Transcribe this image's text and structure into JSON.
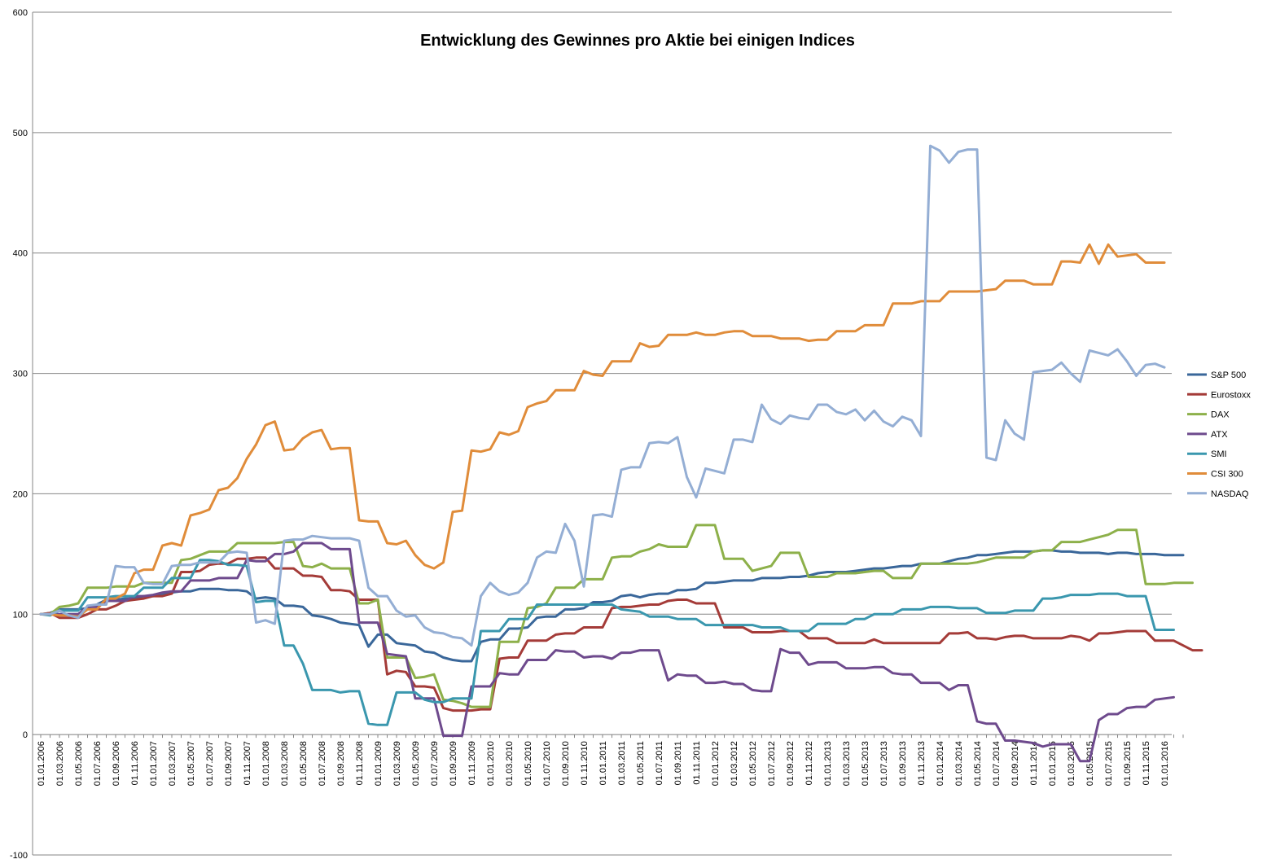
{
  "chart_data": {
    "type": "line",
    "title": "Entwicklung des Gewinnes pro Aktie bei einigen Indices",
    "xlabel": "",
    "ylabel": "",
    "ylim": [
      -100,
      600
    ],
    "yticks": [
      -100,
      0,
      100,
      200,
      300,
      400,
      500,
      600
    ],
    "grid": true,
    "legend_position": "right",
    "x_start": "01.01.2006",
    "x_end": "01.02.2016",
    "x_tick_labels": [
      "01.01.2006",
      "01.03.2006",
      "01.05.2006",
      "01.07.2006",
      "01.09.2006",
      "01.11.2006",
      "01.01.2007",
      "01.03.2007",
      "01.05.2007",
      "01.07.2007",
      "01.09.2007",
      "01.11.2007",
      "01.01.2008",
      "01.03.2008",
      "01.05.2008",
      "01.07.2008",
      "01.09.2008",
      "01.11.2008",
      "01.01.2009",
      "01.03.2009",
      "01.05.2009",
      "01.07.2009",
      "01.09.2009",
      "01.11.2009",
      "01.01.2010",
      "01.03.2010",
      "01.05.2010",
      "01.07.2010",
      "01.09.2010",
      "01.11.2010",
      "01.01.2011",
      "01.03.2011",
      "01.05.2011",
      "01.07.2011",
      "01.09.2011",
      "01.11.2011",
      "01.01.2012",
      "01.03.2012",
      "01.05.2012",
      "01.07.2012",
      "01.09.2012",
      "01.11.2012",
      "01.01.2013",
      "01.03.2013",
      "01.05.2013",
      "01.07.2013",
      "01.09.2013",
      "01.11.2013",
      "01.01.2014",
      "01.03.2014",
      "01.05.2014",
      "01.07.2014",
      "01.09.2014",
      "01.11.2014",
      "01.01.2015",
      "01.03.2015",
      "01.05.2015",
      "01.07.2015",
      "01.09.2015",
      "01.11.2015",
      "01.01.2016"
    ],
    "series": [
      {
        "name": "S&P 500",
        "color": "#3A679A",
        "values": [
          100,
          101,
          104,
          104,
          104,
          105,
          108,
          112,
          112,
          113,
          113,
          115,
          115,
          116,
          118,
          119,
          119,
          121,
          121,
          121,
          120,
          120,
          119,
          113,
          114,
          113,
          107,
          107,
          106,
          99,
          98,
          96,
          93,
          92,
          91,
          73,
          83,
          83,
          76,
          75,
          74,
          69,
          68,
          64,
          62,
          61,
          61,
          77,
          79,
          79,
          88,
          88,
          89,
          97,
          98,
          98,
          104,
          104,
          105,
          110,
          110,
          111,
          115,
          116,
          114,
          116,
          117,
          117,
          120,
          120,
          121,
          126,
          126,
          127,
          128,
          128,
          128,
          130,
          130,
          130,
          131,
          131,
          132,
          134,
          135,
          135,
          135,
          136,
          137,
          138,
          138,
          139,
          140,
          140,
          142,
          142,
          142,
          144,
          146,
          147,
          149,
          149,
          150,
          151,
          152,
          152,
          152,
          153,
          153,
          152,
          152,
          151,
          151,
          151,
          150,
          151,
          151,
          150,
          150,
          150,
          149,
          149,
          149
        ]
      },
      {
        "name": "Eurostoxx",
        "color": "#A43B38",
        "values": [
          100,
          101,
          97,
          97,
          97,
          100,
          104,
          104,
          107,
          111,
          112,
          113,
          115,
          115,
          117,
          135,
          135,
          136,
          141,
          142,
          142,
          146,
          146,
          147,
          147,
          138,
          138,
          138,
          132,
          132,
          131,
          120,
          120,
          119,
          112,
          112,
          112,
          50,
          53,
          52,
          40,
          40,
          39,
          22,
          20,
          20,
          20,
          21,
          21,
          63,
          64,
          64,
          78,
          78,
          78,
          83,
          84,
          84,
          89,
          89,
          89,
          105,
          106,
          106,
          107,
          108,
          108,
          111,
          112,
          112,
          109,
          109,
          109,
          89,
          89,
          89,
          85,
          85,
          85,
          86,
          86,
          86,
          80,
          80,
          80,
          76,
          76,
          76,
          76,
          79,
          76,
          76,
          76,
          76,
          76,
          76,
          76,
          84,
          84,
          85,
          80,
          80,
          79,
          81,
          82,
          82,
          80,
          80,
          80,
          80,
          82,
          81,
          78,
          84,
          84,
          85,
          86,
          86,
          86,
          78,
          78,
          78,
          74,
          70,
          70
        ]
      },
      {
        "name": "DAX",
        "color": "#8DB04A",
        "values": [
          100,
          100,
          106,
          107,
          109,
          122,
          122,
          122,
          123,
          123,
          123,
          126,
          126,
          126,
          126,
          145,
          146,
          149,
          152,
          152,
          152,
          159,
          159,
          159,
          159,
          159,
          160,
          160,
          140,
          139,
          142,
          138,
          138,
          138,
          109,
          109,
          112,
          64,
          64,
          64,
          47,
          48,
          50,
          29,
          28,
          26,
          23,
          23,
          23,
          77,
          77,
          77,
          105,
          106,
          109,
          122,
          122,
          122,
          129,
          129,
          129,
          147,
          148,
          148,
          152,
          154,
          158,
          156,
          156,
          156,
          174,
          174,
          174,
          146,
          146,
          146,
          136,
          138,
          140,
          151,
          151,
          151,
          131,
          131,
          131,
          134,
          134,
          134,
          135,
          136,
          136,
          130,
          130,
          130,
          142,
          142,
          142,
          142,
          142,
          142,
          143,
          145,
          147,
          147,
          147,
          147,
          152,
          153,
          153,
          160,
          160,
          160,
          162,
          164,
          166,
          170,
          170,
          170,
          125,
          125,
          125,
          126,
          126,
          126
        ]
      },
      {
        "name": "ATX",
        "color": "#6E4A8D",
        "values": [
          100,
          100,
          100,
          100,
          100,
          106,
          106,
          111,
          111,
          111,
          115,
          115,
          116,
          118,
          119,
          119,
          128,
          128,
          128,
          130,
          130,
          130,
          145,
          144,
          144,
          150,
          150,
          152,
          159,
          159,
          159,
          154,
          154,
          154,
          93,
          93,
          93,
          67,
          66,
          65,
          30,
          30,
          30,
          -1,
          -1,
          -1,
          40,
          40,
          40,
          51,
          50,
          50,
          62,
          62,
          62,
          70,
          69,
          69,
          64,
          65,
          65,
          63,
          68,
          68,
          70,
          70,
          70,
          45,
          50,
          49,
          49,
          43,
          43,
          44,
          42,
          42,
          37,
          36,
          36,
          71,
          68,
          68,
          58,
          60,
          60,
          60,
          55,
          55,
          55,
          56,
          56,
          51,
          50,
          50,
          43,
          43,
          43,
          37,
          41,
          41,
          11,
          9,
          9,
          -5,
          -5,
          -6,
          -7,
          -10,
          -8,
          -8,
          -8,
          -22,
          -22,
          12,
          17,
          17,
          22,
          23,
          23,
          29,
          30,
          31
        ]
      },
      {
        "name": "SMI",
        "color": "#3A97AE",
        "values": [
          100,
          99,
          103,
          103,
          103,
          114,
          114,
          114,
          115,
          115,
          115,
          122,
          122,
          122,
          130,
          130,
          130,
          145,
          145,
          144,
          141,
          141,
          140,
          110,
          111,
          111,
          74,
          74,
          59,
          37,
          37,
          37,
          35,
          36,
          36,
          9,
          8,
          8,
          35,
          35,
          35,
          29,
          27,
          27,
          30,
          30,
          30,
          86,
          86,
          86,
          96,
          96,
          96,
          108,
          108,
          108,
          108,
          108,
          108,
          108,
          108,
          108,
          104,
          103,
          102,
          98,
          98,
          98,
          96,
          96,
          96,
          91,
          91,
          91,
          91,
          91,
          91,
          89,
          89,
          89,
          86,
          86,
          86,
          92,
          92,
          92,
          92,
          96,
          96,
          100,
          100,
          100,
          104,
          104,
          104,
          106,
          106,
          106,
          105,
          105,
          105,
          101,
          101,
          101,
          103,
          103,
          103,
          113,
          113,
          114,
          116,
          116,
          116,
          117,
          117,
          117,
          115,
          115,
          115,
          87,
          87,
          87
        ]
      },
      {
        "name": "CSI 300",
        "color": "#E08C3A",
        "values": [
          100,
          100,
          99,
          99,
          98,
          104,
          104,
          113,
          113,
          117,
          134,
          137,
          137,
          157,
          159,
          157,
          182,
          184,
          187,
          203,
          205,
          213,
          229,
          241,
          257,
          260,
          236,
          237,
          246,
          251,
          253,
          237,
          238,
          238,
          178,
          177,
          177,
          159,
          158,
          161,
          149,
          141,
          138,
          143,
          185,
          186,
          236,
          235,
          237,
          251,
          249,
          252,
          272,
          275,
          277,
          286,
          286,
          286,
          302,
          299,
          298,
          310,
          310,
          310,
          325,
          322,
          323,
          332,
          332,
          332,
          334,
          332,
          332,
          334,
          335,
          335,
          331,
          331,
          331,
          329,
          329,
          329,
          327,
          328,
          328,
          335,
          335,
          335,
          340,
          340,
          340,
          358,
          358,
          358,
          360,
          360,
          360,
          368,
          368,
          368,
          368,
          369,
          370,
          377,
          377,
          377,
          374,
          374,
          374,
          393,
          393,
          392,
          407,
          391,
          407,
          397,
          398,
          399,
          392,
          392,
          392
        ]
      },
      {
        "name": "NASDAQ",
        "color": "#94AED4",
        "values": [
          100,
          100,
          103,
          99,
          97,
          107,
          108,
          108,
          140,
          139,
          139,
          126,
          125,
          125,
          140,
          141,
          141,
          143,
          143,
          143,
          151,
          152,
          151,
          93,
          95,
          92,
          161,
          162,
          162,
          165,
          164,
          163,
          163,
          163,
          161,
          122,
          115,
          115,
          103,
          98,
          99,
          89,
          85,
          84,
          81,
          80,
          74,
          115,
          126,
          119,
          116,
          118,
          126,
          147,
          152,
          151,
          175,
          161,
          123,
          182,
          183,
          181,
          220,
          222,
          222,
          242,
          243,
          242,
          247,
          214,
          197,
          221,
          219,
          217,
          245,
          245,
          243,
          274,
          262,
          258,
          265,
          263,
          262,
          274,
          274,
          268,
          266,
          270,
          261,
          269,
          260,
          256,
          264,
          261,
          248,
          489,
          485,
          475,
          484,
          486,
          486,
          230,
          228,
          261,
          250,
          245,
          301,
          302,
          303,
          309,
          300,
          293,
          319,
          317,
          315,
          320,
          310,
          298,
          307,
          308,
          305
        ]
      }
    ]
  }
}
